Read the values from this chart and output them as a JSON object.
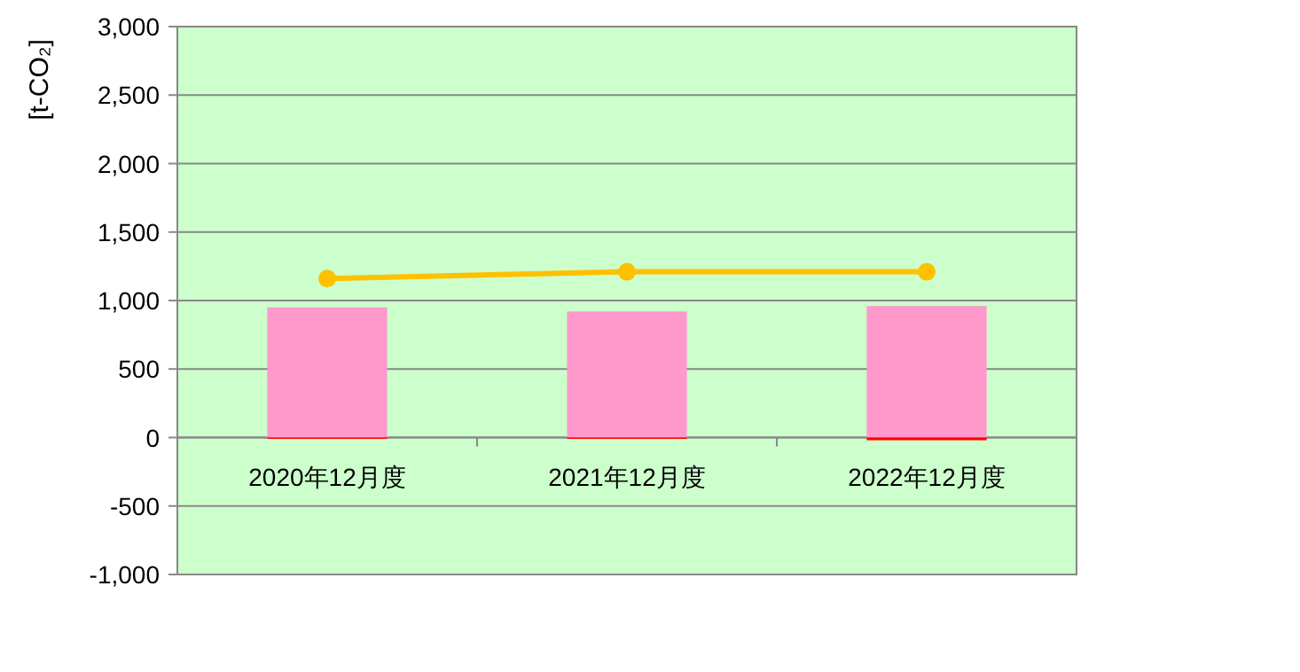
{
  "chart_data": {
    "type": "bar",
    "stacked": true,
    "ylabel": "[t-CO₂]",
    "categories": [
      "2020年12月度",
      "2021年12月度",
      "2022年12月度"
    ],
    "series": [
      {
        "color": "#ff99cc",
        "values": [
          950,
          920,
          960
        ]
      },
      {
        "color": "#ff0000",
        "values": [
          -10,
          -10,
          -20
        ]
      },
      {
        "type": "line",
        "color": "#ffc000",
        "marker": "circle",
        "values": [
          1160,
          1210,
          1210
        ]
      }
    ],
    "ylim": [
      -1000,
      3000
    ],
    "yticks": [
      {
        "value": -1000,
        "label": "-1,000"
      },
      {
        "value": -500,
        "label": "-500"
      },
      0,
      500,
      {
        "value": 1000,
        "label": "1,000"
      },
      {
        "value": 1500,
        "label": "1,500"
      },
      {
        "value": 2000,
        "label": "2,000"
      },
      {
        "value": 2500,
        "label": "2,500"
      },
      {
        "value": 3000,
        "label": "3,000"
      }
    ],
    "grid": "y"
  }
}
